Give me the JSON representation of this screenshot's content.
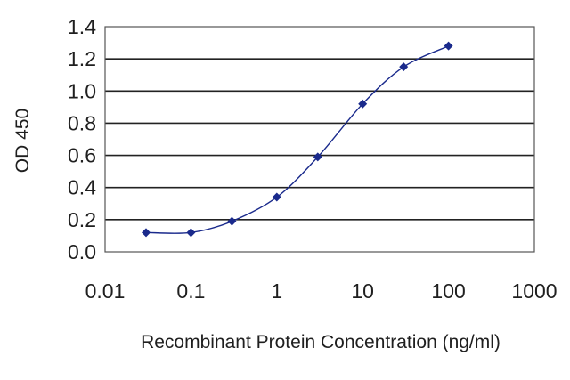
{
  "chart_data": {
    "type": "line",
    "title": "",
    "xlabel": "Recombinant Protein Concentration (ng/ml)",
    "ylabel": "OD 450",
    "x_scale": "log",
    "xlim": [
      0.01,
      1000
    ],
    "ylim": [
      0.0,
      1.4
    ],
    "x_ticks": [
      "0.01",
      "0.1",
      "1",
      "10",
      "100",
      "1000"
    ],
    "y_ticks": [
      "0.0",
      "0.2",
      "0.4",
      "0.6",
      "0.8",
      "1.0",
      "1.2",
      "1.4"
    ],
    "grid": "horizontal",
    "legend": "none",
    "series": [
      {
        "x": [
          0.03,
          0.1,
          0.3,
          1,
          3,
          10,
          30,
          100
        ],
        "y": [
          0.12,
          0.12,
          0.19,
          0.34,
          0.59,
          0.92,
          1.15,
          1.28
        ],
        "color": "#1a2a8c"
      }
    ]
  }
}
